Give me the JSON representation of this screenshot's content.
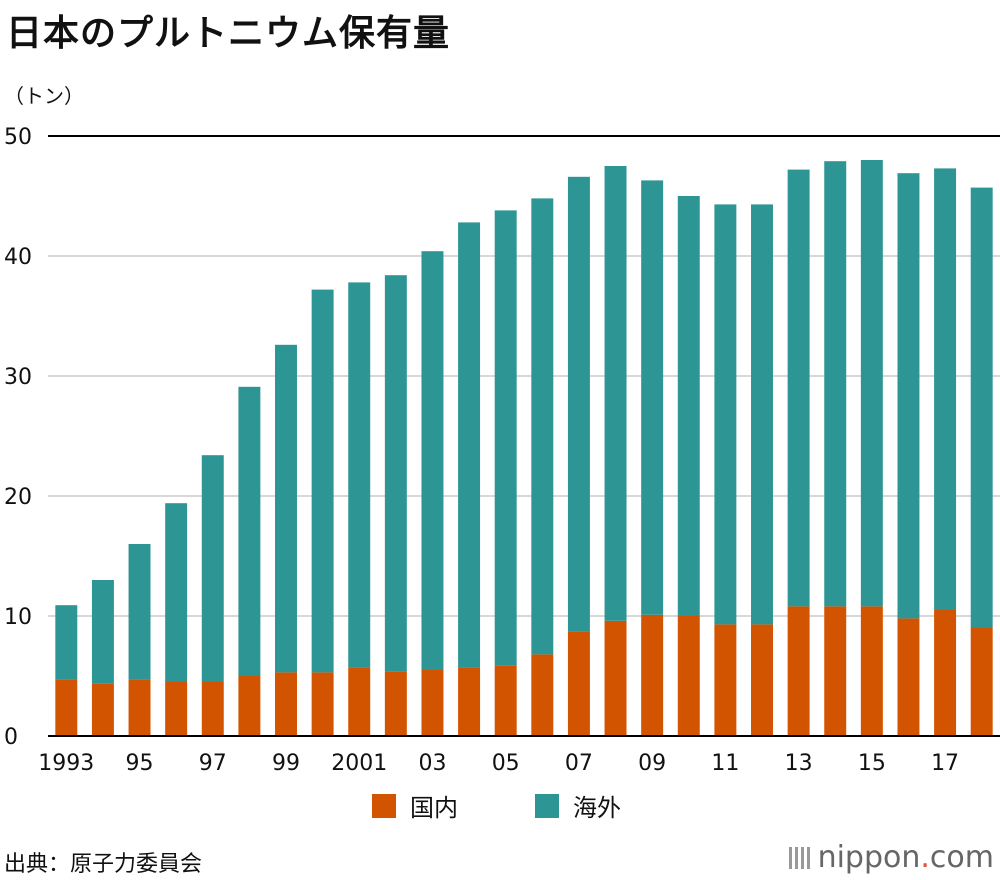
{
  "title": "日本のプルトニウム保有量",
  "unit_label": "（トン）",
  "source": "出典：原子力委員会",
  "logo": {
    "name": "nippon",
    "dot": ".",
    "domain": "com"
  },
  "colors": {
    "domestic": "#d35400",
    "overseas": "#2e9595",
    "grid": "#cccccc",
    "axis": "#000000"
  },
  "chart_data": {
    "type": "bar",
    "stacked": true,
    "categories": [
      "1993",
      "1994",
      "1995",
      "1996",
      "1997",
      "1998",
      "1999",
      "2000",
      "2001",
      "2002",
      "2003",
      "2004",
      "2005",
      "2006",
      "2007",
      "2008",
      "2009",
      "2010",
      "2011",
      "2012",
      "2013",
      "2014",
      "2015",
      "2016",
      "2017",
      "2018"
    ],
    "tick_labels": [
      "1993",
      "",
      "95",
      "",
      "97",
      "",
      "99",
      "",
      "2001",
      "",
      "03",
      "",
      "05",
      "",
      "07",
      "",
      "09",
      "",
      "11",
      "",
      "13",
      "",
      "15",
      "",
      "17",
      ""
    ],
    "y_ticks": [
      "0",
      "10",
      "20",
      "30",
      "40",
      "50"
    ],
    "ylim": [
      0,
      50
    ],
    "series": [
      {
        "name": "国内",
        "values": [
          4.7,
          4.4,
          4.7,
          4.5,
          4.5,
          5.0,
          5.3,
          5.3,
          5.7,
          5.4,
          5.5,
          5.7,
          5.9,
          6.8,
          8.7,
          9.6,
          10.1,
          10.0,
          9.3,
          9.3,
          10.8,
          10.8,
          10.8,
          9.8,
          10.5,
          9.0
        ]
      },
      {
        "name": "海外",
        "values": [
          6.2,
          8.6,
          11.3,
          14.9,
          18.9,
          24.1,
          27.3,
          31.9,
          32.1,
          33.0,
          34.9,
          37.1,
          37.9,
          38.0,
          37.9,
          37.9,
          36.2,
          35.0,
          35.0,
          35.0,
          36.4,
          37.1,
          37.2,
          37.1,
          36.8,
          36.7
        ]
      }
    ],
    "legend_position": "bottom",
    "grid": true
  }
}
